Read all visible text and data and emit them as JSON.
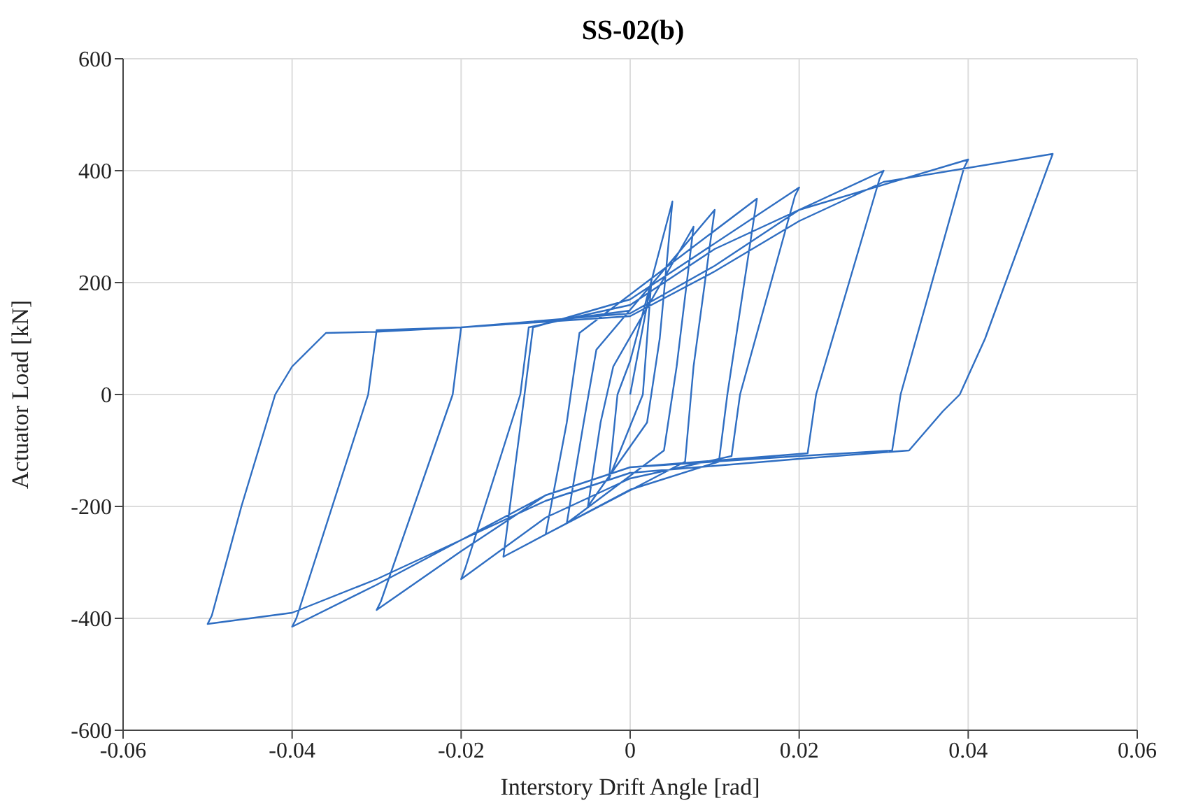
{
  "chart_data": {
    "type": "line",
    "title": "SS-02(b)",
    "xlabel": "Interstory Drift Angle [rad]",
    "ylabel": "Actuator Load [kN]",
    "xlim": [
      -0.06,
      0.06
    ],
    "xticks": [
      -0.06,
      -0.04,
      -0.02,
      0,
      0.02,
      0.04,
      0.06
    ],
    "ylim": [
      -600,
      600
    ],
    "yticks": [
      -600,
      -400,
      -200,
      0,
      200,
      400,
      600
    ],
    "grid": true,
    "marker": "none",
    "series": [
      {
        "color": "#2f6ec2",
        "x": [
          0,
          0.0025,
          0.0015,
          -0.0025,
          -0.0015,
          0,
          0.005,
          0.0035,
          0.002,
          -0.005,
          -0.0035,
          -0.002,
          0.0075,
          0.0055,
          0.004,
          -0.0075,
          -0.0055,
          -0.004,
          0.01,
          0.0075,
          0.0065,
          -0.01,
          -0.0075,
          -0.006,
          0.015,
          0.0115,
          0.0105,
          0,
          -0.015,
          -0.0125,
          -0.0115,
          0,
          0.02,
          0.0195,
          0.013,
          0.012,
          0,
          -0.01,
          -0.02,
          -0.0195,
          -0.013,
          -0.012,
          0,
          0.01,
          0.03,
          0.0295,
          0.022,
          0.021,
          0,
          -0.01,
          -0.02,
          -0.03,
          -0.0295,
          -0.021,
          -0.02,
          0,
          0.01,
          0.02,
          0.04,
          0.0395,
          0.032,
          0.031,
          0.02,
          0,
          -0.01,
          -0.02,
          -0.03,
          -0.04,
          -0.0395,
          -0.031,
          -0.03,
          -0.02,
          0,
          0.01,
          0.02,
          0.03,
          0.05,
          0.0495,
          0.042,
          0.039,
          0.037,
          0.033,
          0.02,
          0,
          -0.01,
          -0.02,
          -0.03,
          -0.04,
          -0.05,
          -0.0495,
          -0.046,
          -0.042,
          -0.04,
          -0.036,
          -0.03,
          -0.02,
          -0.01,
          0
        ],
        "values": [
          0,
          200,
          0,
          -150,
          0,
          60,
          345,
          100,
          -50,
          -200,
          -50,
          50,
          300,
          50,
          -100,
          -230,
          -50,
          80,
          330,
          50,
          -120,
          -250,
          -50,
          110,
          350,
          0,
          -120,
          -170,
          -290,
          0,
          120,
          170,
          370,
          355,
          0,
          -110,
          -150,
          -220,
          -330,
          -310,
          0,
          120,
          160,
          260,
          400,
          385,
          0,
          -105,
          -130,
          -180,
          -280,
          -385,
          -370,
          0,
          120,
          145,
          230,
          330,
          420,
          405,
          0,
          -100,
          -110,
          -130,
          -180,
          -260,
          -340,
          -415,
          -400,
          0,
          115,
          120,
          140,
          220,
          310,
          380,
          430,
          410,
          100,
          0,
          -30,
          -100,
          -115,
          -140,
          -190,
          -260,
          -330,
          -390,
          -410,
          -395,
          -200,
          0,
          50,
          110,
          112,
          120,
          130,
          150
        ]
      }
    ]
  }
}
